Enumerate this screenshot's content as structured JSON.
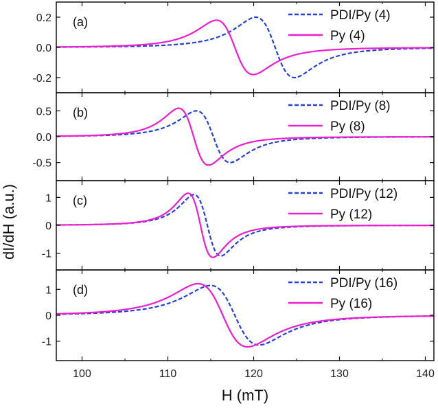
{
  "chart_data": {
    "type": "line",
    "xlabel": "H (mT)",
    "ylabel": "dI/dH (a.u.)",
    "xlim": [
      97,
      141
    ],
    "xticks": [
      100,
      110,
      120,
      130,
      140
    ],
    "x_tick_labels": [
      "100",
      "110",
      "120",
      "130",
      "140"
    ],
    "grid": false,
    "legend_position": "top-right",
    "colors": {
      "PDI/Py": "#2340d8",
      "Py": "#ee1ed0"
    },
    "panels": [
      {
        "label": "(a)",
        "ylim": [
          -0.3,
          0.3
        ],
        "yticks": [
          -0.2,
          0.0,
          0.2
        ],
        "y_tick_labels": [
          "-0.2",
          "0.0",
          "0.2"
        ],
        "series": [
          {
            "name": "PDI/Py (4)",
            "style": "dashed",
            "center": 122.5,
            "half_width": 3.9,
            "amplitude": 0.2
          },
          {
            "name": "Py (4)",
            "style": "solid",
            "center": 117.8,
            "half_width": 3.7,
            "amplitude": 0.18
          }
        ]
      },
      {
        "label": "(b)",
        "ylim": [
          -0.85,
          0.85
        ],
        "yticks": [
          -0.5,
          0.0,
          0.5
        ],
        "y_tick_labels": [
          "-0.5",
          "0.0",
          "0.5"
        ],
        "series": [
          {
            "name": "PDI/Py (8)",
            "style": "dashed",
            "center": 115.3,
            "half_width": 3.4,
            "amplitude": 0.5
          },
          {
            "name": "Py (8)",
            "style": "solid",
            "center": 113.0,
            "half_width": 3.0,
            "amplitude": 0.55
          }
        ]
      },
      {
        "label": "(c)",
        "ylim": [
          -1.6,
          1.6
        ],
        "yticks": [
          -1,
          0,
          1
        ],
        "y_tick_labels": [
          "-1",
          "0",
          "1"
        ],
        "series": [
          {
            "name": "PDI/Py (12)",
            "style": "dashed",
            "center": 114.6,
            "half_width": 2.7,
            "amplitude": 1.1
          },
          {
            "name": "Py (12)",
            "style": "solid",
            "center": 113.8,
            "half_width": 2.5,
            "amplitude": 1.15
          }
        ]
      },
      {
        "label": "(d)",
        "ylim": [
          -1.75,
          1.75
        ],
        "yticks": [
          -1,
          0,
          1
        ],
        "y_tick_labels": [
          "-1",
          "0",
          "1"
        ],
        "series": [
          {
            "name": "PDI/Py (16)",
            "style": "dashed",
            "center": 117.8,
            "half_width": 4.9,
            "amplitude": 1.15
          },
          {
            "name": "Py (16)",
            "style": "solid",
            "center": 116.4,
            "half_width": 5.0,
            "amplitude": 1.22
          }
        ]
      }
    ]
  }
}
